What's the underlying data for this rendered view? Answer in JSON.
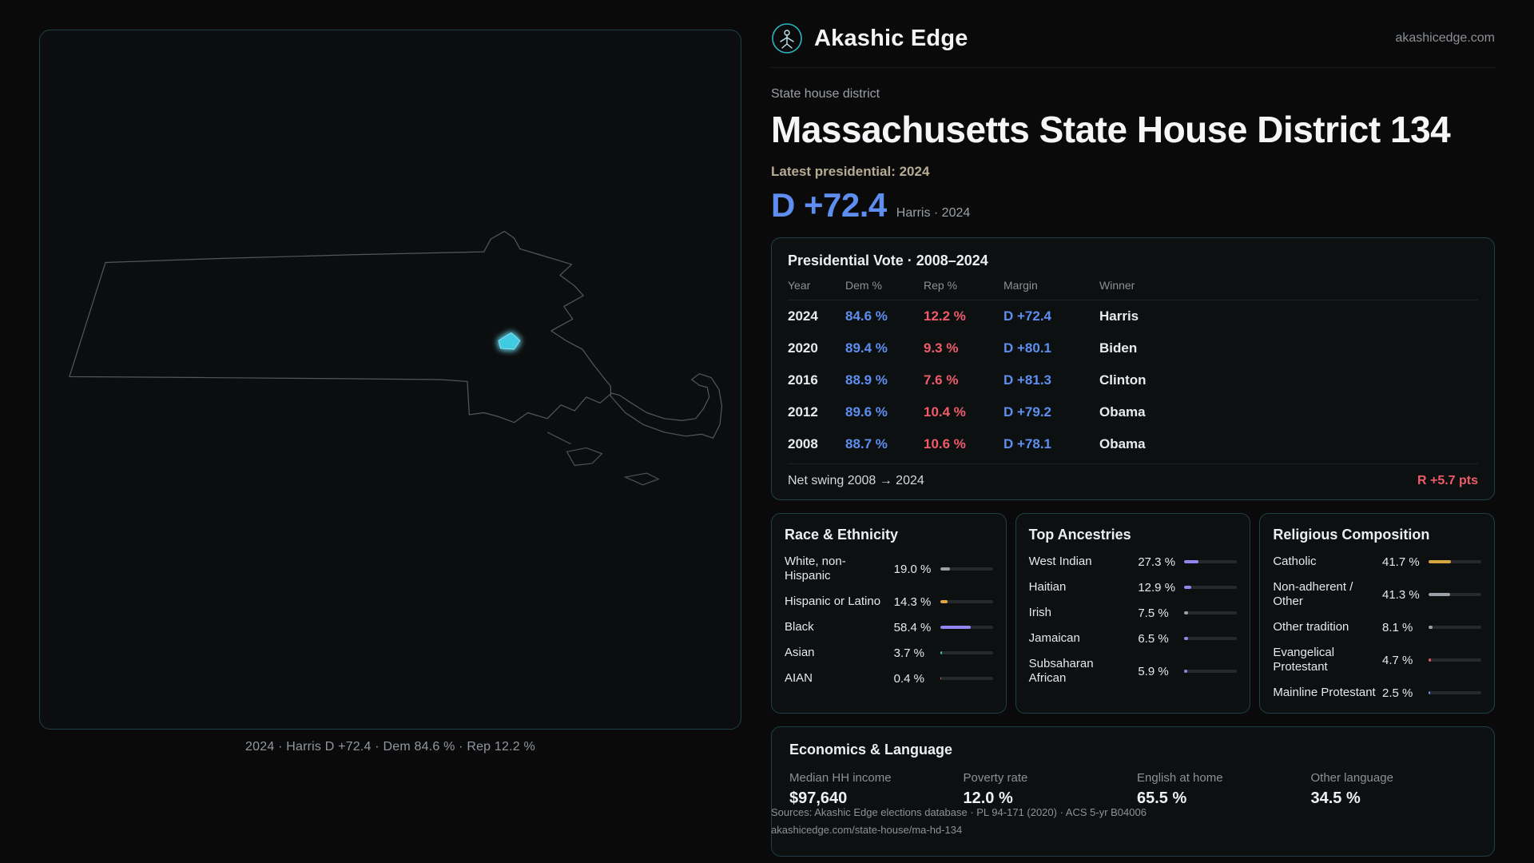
{
  "site": {
    "brand": "Akashic Edge",
    "domain": "akashicedge.com"
  },
  "map": {
    "caption": "2024 · Harris D +72.4 · Dem 84.6 % · Rep 12.2 %"
  },
  "header": {
    "kicker": "State house district",
    "title": "Massachusetts State House District 134",
    "latest_label": "Latest presidential: 2024",
    "headline_margin": "D +72.4",
    "headline_detail": "Harris · 2024"
  },
  "presidential": {
    "title": "Presidential Vote · 2008–2024",
    "columns": [
      "Year",
      "Dem %",
      "Rep %",
      "Margin",
      "Winner"
    ],
    "rows": [
      {
        "year": "2024",
        "dem": "84.6 %",
        "rep": "12.2 %",
        "margin": "D +72.4",
        "winner": "Harris"
      },
      {
        "year": "2020",
        "dem": "89.4 %",
        "rep": "9.3 %",
        "margin": "D +80.1",
        "winner": "Biden"
      },
      {
        "year": "2016",
        "dem": "88.9 %",
        "rep": "7.6 %",
        "margin": "D +81.3",
        "winner": "Clinton"
      },
      {
        "year": "2012",
        "dem": "89.6 %",
        "rep": "10.4 %",
        "margin": "D +79.2",
        "winner": "Obama"
      },
      {
        "year": "2008",
        "dem": "88.7 %",
        "rep": "10.6 %",
        "margin": "D +78.1",
        "winner": "Obama"
      }
    ],
    "net_swing_label": "Net swing 2008 → 2024",
    "net_swing_value": "R +5.7 pts"
  },
  "race": {
    "title": "Race & Ethnicity",
    "items": [
      {
        "label": "White, non-Hispanic",
        "value": "19.0 %",
        "pct": 19.0,
        "color": "#9aa1a8"
      },
      {
        "label": "Hispanic or Latino",
        "value": "14.3 %",
        "pct": 14.3,
        "color": "#e3a23e"
      },
      {
        "label": "Black",
        "value": "58.4 %",
        "pct": 58.4,
        "color": "#9486f2"
      },
      {
        "label": "Asian",
        "value": "3.7 %",
        "pct": 3.7,
        "color": "#43c79c"
      },
      {
        "label": "AIAN",
        "value": "0.4 %",
        "pct": 0.4,
        "color": "#e25c64"
      }
    ]
  },
  "ancestries": {
    "title": "Top Ancestries",
    "items": [
      {
        "label": "West Indian",
        "value": "27.3 %",
        "pct": 27.3,
        "color": "#9486f2"
      },
      {
        "label": "Haitian",
        "value": "12.9 %",
        "pct": 12.9,
        "color": "#9486f2"
      },
      {
        "label": "Irish",
        "value": "7.5 %",
        "pct": 7.5,
        "color": "#9aa1a8"
      },
      {
        "label": "Jamaican",
        "value": "6.5 %",
        "pct": 6.5,
        "color": "#9486f2"
      },
      {
        "label": "Subsaharan African",
        "value": "5.9 %",
        "pct": 5.9,
        "color": "#9486f2"
      }
    ]
  },
  "religion": {
    "title": "Religious Composition",
    "items": [
      {
        "label": "Catholic",
        "value": "41.7 %",
        "pct": 41.7,
        "color": "#d8a63f"
      },
      {
        "label": "Non-adherent / Other",
        "value": "41.3 %",
        "pct": 41.3,
        "color": "#9aa1a8"
      },
      {
        "label": "Other tradition",
        "value": "8.1 %",
        "pct": 8.1,
        "color": "#9aa1a8"
      },
      {
        "label": "Evangelical Protestant",
        "value": "4.7 %",
        "pct": 4.7,
        "color": "#e25c64"
      },
      {
        "label": "Mainline Protestant",
        "value": "2.5 %",
        "pct": 2.5,
        "color": "#5d8ef0"
      }
    ]
  },
  "economics": {
    "title": "Economics & Language",
    "stats": [
      {
        "label": "Median HH income",
        "value": "$97,640"
      },
      {
        "label": "Poverty rate",
        "value": "12.0 %"
      },
      {
        "label": "English at home",
        "value": "65.5 %"
      },
      {
        "label": "Other language",
        "value": "34.5 %"
      }
    ]
  },
  "sources": {
    "line1": "Sources: Akashic Edge elections database · PL 94-171 (2020) · ACS 5-yr B04006",
    "line2": "akashicedge.com/state-house/ma-hd-134"
  },
  "colors": {
    "dem_blue": "#5d8ef0",
    "rep_red": "#ef5b68",
    "district_cyan": "#3fcbe2",
    "card_border": "#1f4047"
  }
}
